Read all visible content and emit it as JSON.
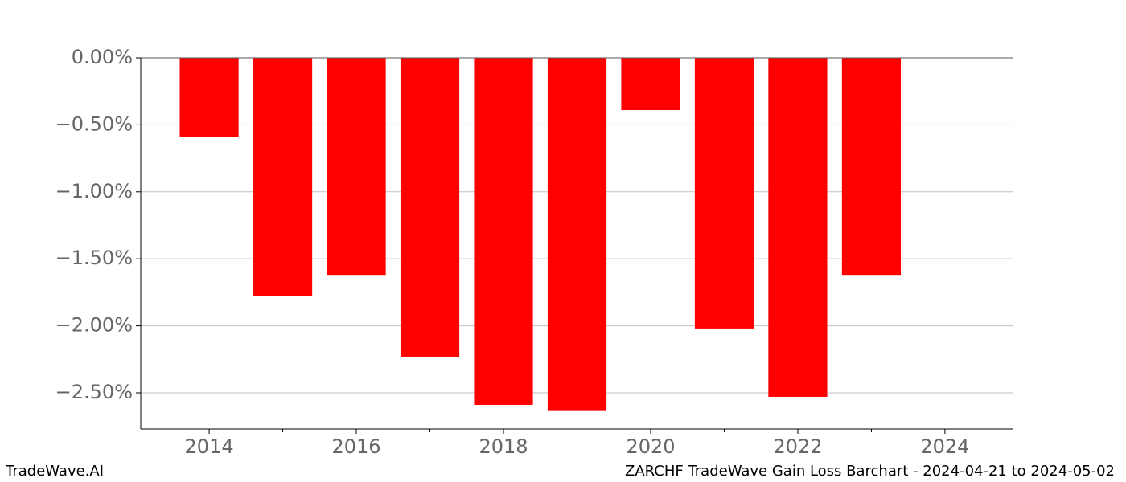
{
  "chart_data": {
    "type": "bar",
    "title": "ZARCHF TradeWave Gain Loss Barchart - 2024-04-21 to 2024-05-02",
    "watermark": "TradeWave.AI",
    "x": [
      2014,
      2015,
      2016,
      2017,
      2018,
      2019,
      2020,
      2021,
      2022,
      2023
    ],
    "values": [
      -0.59,
      -1.78,
      -1.62,
      -2.23,
      -2.59,
      -2.63,
      -0.39,
      -2.02,
      -2.53,
      -1.62
    ],
    "color": "#ff0000",
    "xlim": [
      2013.07,
      2024.93
    ],
    "xticks": [
      2014,
      2016,
      2018,
      2020,
      2022,
      2024
    ],
    "xminorticks": [
      2015,
      2017,
      2019,
      2021,
      2023
    ],
    "ylim": [
      -2.77,
      0
    ],
    "yticks": [
      {
        "value": 0,
        "label": "0.00%"
      },
      {
        "value": -0.5,
        "label": "−0.50%"
      },
      {
        "value": -1,
        "label": "−1.00%"
      },
      {
        "value": -1.5,
        "label": "−1.50%"
      },
      {
        "value": -2,
        "label": "−2.00%"
      },
      {
        "value": -2.5,
        "label": "−2.50%"
      }
    ],
    "grid": true
  }
}
